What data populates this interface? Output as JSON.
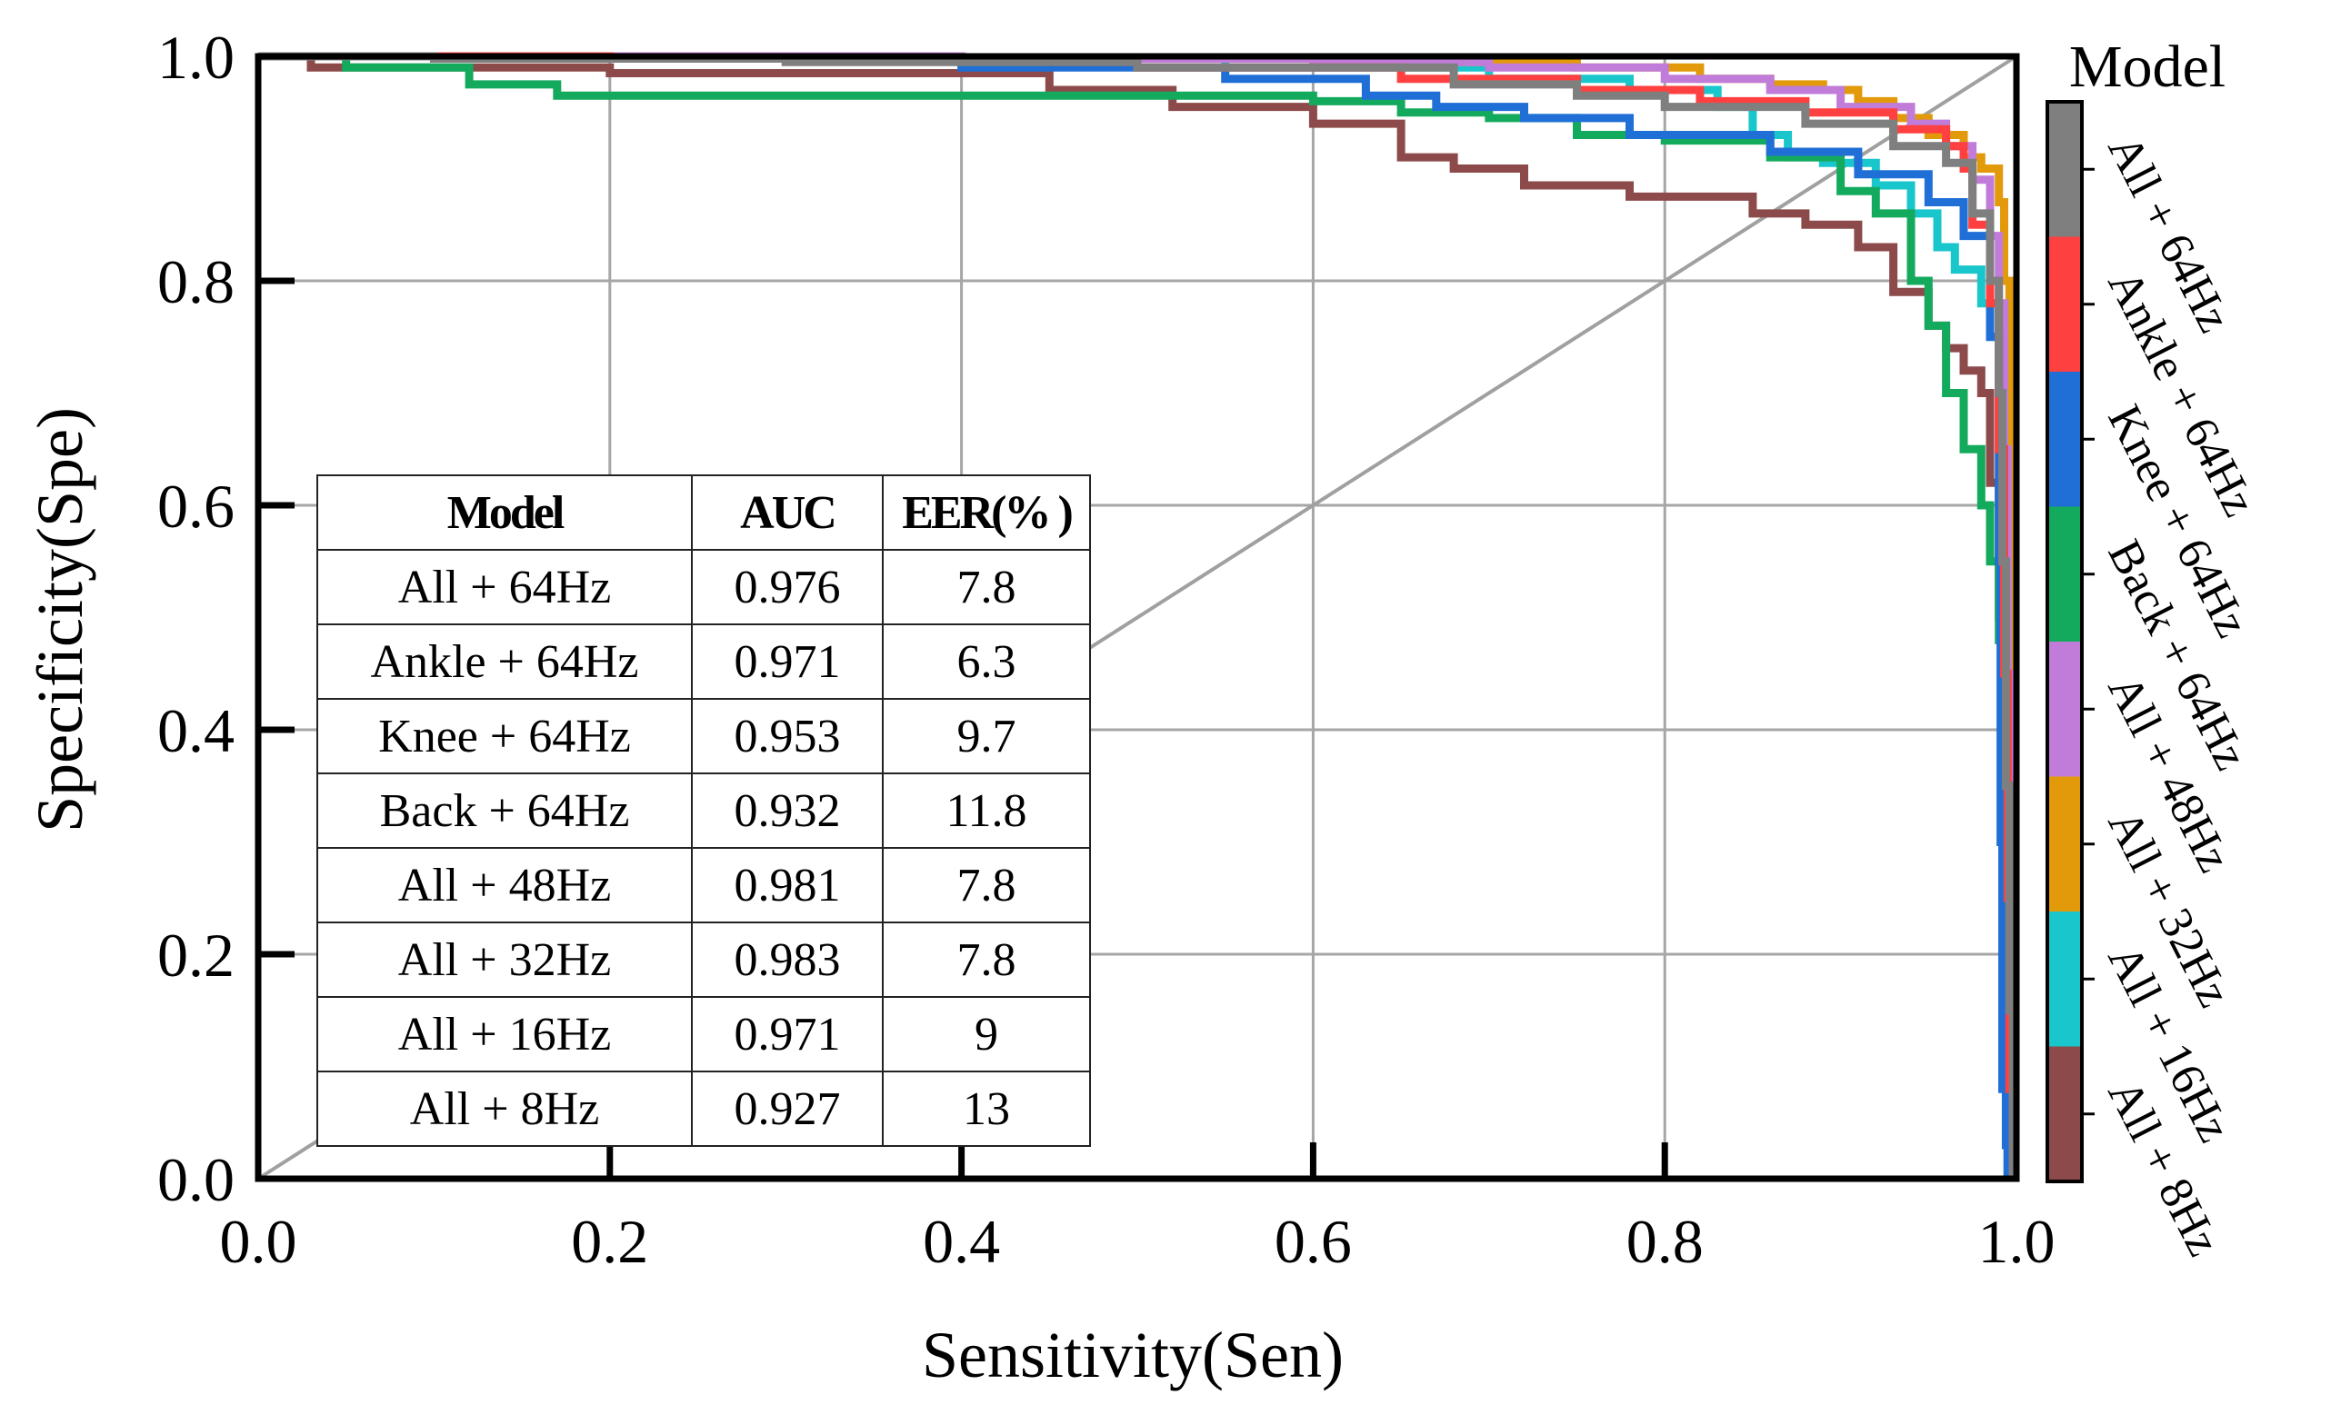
{
  "chart_data": {
    "type": "line",
    "xlabel": "Sensitivity(Sen)",
    "ylabel": "Specificity(Spe)",
    "xlim": [
      0.0,
      1.0
    ],
    "ylim": [
      0.0,
      1.0
    ],
    "x_ticks": [
      "0.0",
      "0.2",
      "0.4",
      "0.6",
      "0.8",
      "1.0"
    ],
    "y_ticks": [
      "0.0",
      "0.2",
      "0.4",
      "0.6",
      "0.8",
      "1.0"
    ],
    "grid": true,
    "legend": "colorbar on right",
    "legend_title": "Model",
    "reference_line": {
      "x": [
        0,
        1
      ],
      "y": [
        0,
        1
      ],
      "color": "#a0a0a0"
    },
    "series": [
      {
        "name": "All + 64Hz",
        "color": "#7f7f7f",
        "x": [
          0,
          0.1,
          0.3,
          0.5,
          0.68,
          0.75,
          0.8,
          0.88,
          0.93,
          0.96,
          0.975,
          0.985,
          0.99,
          0.992,
          0.994,
          0.996,
          0.998
        ],
        "y": [
          1.0,
          0.998,
          0.995,
          0.99,
          0.975,
          0.965,
          0.955,
          0.94,
          0.92,
          0.905,
          0.86,
          0.8,
          0.7,
          0.55,
          0.35,
          0.15,
          0.0
        ]
      },
      {
        "name": "Ankle + 64Hz",
        "color": "#ff4040",
        "x": [
          0,
          0.2,
          0.5,
          0.65,
          0.75,
          0.82,
          0.88,
          0.93,
          0.96,
          0.97,
          0.975,
          0.985,
          0.99,
          0.993,
          0.995,
          0.996,
          0.998
        ],
        "y": [
          1.0,
          0.998,
          0.99,
          0.98,
          0.97,
          0.96,
          0.95,
          0.935,
          0.92,
          0.9,
          0.85,
          0.78,
          0.65,
          0.45,
          0.25,
          0.08,
          0.0
        ]
      },
      {
        "name": "Knee + 64Hz",
        "color": "#1f6fd6",
        "x": [
          0,
          0.2,
          0.4,
          0.55,
          0.63,
          0.67,
          0.72,
          0.78,
          0.86,
          0.91,
          0.95,
          0.97,
          0.985,
          0.99,
          0.991,
          0.992,
          0.994,
          0.995
        ],
        "y": [
          1.0,
          0.998,
          0.99,
          0.98,
          0.965,
          0.955,
          0.945,
          0.93,
          0.915,
          0.895,
          0.87,
          0.84,
          0.75,
          0.55,
          0.3,
          0.08,
          0.03,
          0.0
        ]
      },
      {
        "name": "Back + 64Hz",
        "color": "#14aa5e",
        "x": [
          0,
          0.05,
          0.12,
          0.17,
          0.28,
          0.5,
          0.6,
          0.65,
          0.7,
          0.75,
          0.8,
          0.86,
          0.9,
          0.92,
          0.94,
          0.95,
          0.96,
          0.97,
          0.98,
          0.985,
          0.99,
          0.993,
          0.995
        ],
        "y": [
          1.0,
          0.99,
          0.975,
          0.965,
          0.965,
          0.965,
          0.96,
          0.95,
          0.945,
          0.93,
          0.925,
          0.91,
          0.88,
          0.86,
          0.8,
          0.76,
          0.7,
          0.65,
          0.6,
          0.55,
          0.48,
          0.35,
          0.0
        ]
      },
      {
        "name": "All + 48Hz",
        "color": "#c07cd8",
        "x": [
          0,
          0.4,
          0.6,
          0.7,
          0.8,
          0.86,
          0.9,
          0.94,
          0.96,
          0.975,
          0.985,
          0.99,
          0.993,
          0.995,
          0.997,
          0.999
        ],
        "y": [
          1.0,
          0.998,
          0.995,
          0.99,
          0.98,
          0.97,
          0.955,
          0.94,
          0.92,
          0.89,
          0.84,
          0.78,
          0.65,
          0.45,
          0.2,
          0.0
        ]
      },
      {
        "name": "All + 32Hz",
        "color": "#e39a0a",
        "x": [
          0,
          0.4,
          0.65,
          0.75,
          0.82,
          0.86,
          0.89,
          0.91,
          0.93,
          0.95,
          0.97,
          0.98,
          0.99,
          0.993,
          0.996,
          0.998,
          0.999
        ],
        "y": [
          1.0,
          0.998,
          0.995,
          0.99,
          0.98,
          0.975,
          0.97,
          0.96,
          0.945,
          0.93,
          0.91,
          0.9,
          0.87,
          0.8,
          0.6,
          0.35,
          0.0
        ]
      },
      {
        "name": "All + 16Hz",
        "color": "#19c6cc",
        "x": [
          0,
          0.3,
          0.55,
          0.7,
          0.78,
          0.83,
          0.85,
          0.87,
          0.89,
          0.92,
          0.94,
          0.955,
          0.965,
          0.98,
          0.99,
          0.993,
          0.996,
          0.998
        ],
        "y": [
          1.0,
          0.998,
          0.99,
          0.98,
          0.97,
          0.955,
          0.93,
          0.91,
          0.905,
          0.885,
          0.86,
          0.83,
          0.81,
          0.78,
          0.7,
          0.55,
          0.3,
          0.0
        ]
      },
      {
        "name": "All + 8Hz",
        "color": "#8c4a4a",
        "x": [
          0,
          0.03,
          0.2,
          0.45,
          0.52,
          0.6,
          0.65,
          0.68,
          0.72,
          0.78,
          0.85,
          0.88,
          0.91,
          0.93,
          0.95,
          0.96,
          0.97,
          0.98,
          0.985,
          0.99,
          0.993,
          0.995,
          0.997
        ],
        "y": [
          1.0,
          0.99,
          0.985,
          0.97,
          0.955,
          0.94,
          0.91,
          0.9,
          0.885,
          0.875,
          0.86,
          0.85,
          0.83,
          0.79,
          0.76,
          0.74,
          0.72,
          0.7,
          0.62,
          0.5,
          0.4,
          0.28,
          0.0
        ]
      }
    ]
  },
  "table": {
    "headers": [
      "Model",
      "AUC",
      "EER(% )"
    ],
    "rows": [
      [
        "All + 64Hz",
        "0.976",
        "7.8"
      ],
      [
        "Ankle + 64Hz",
        "0.971",
        "6.3"
      ],
      [
        "Knee + 64Hz",
        "0.953",
        "9.7"
      ],
      [
        "Back + 64Hz",
        "0.932",
        "11.8"
      ],
      [
        "All + 48Hz",
        "0.981",
        "7.8"
      ],
      [
        "All + 32Hz",
        "0.983",
        "7.8"
      ],
      [
        "All + 16Hz",
        "0.971",
        "9"
      ],
      [
        "All + 8Hz",
        "0.927",
        "13"
      ]
    ]
  }
}
